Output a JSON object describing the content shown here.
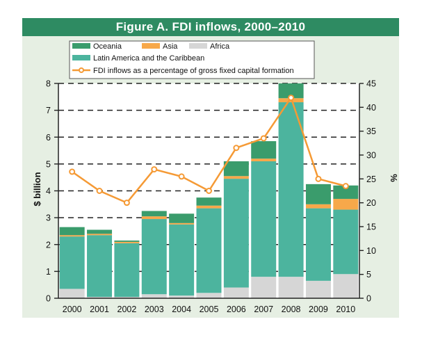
{
  "chart_data": {
    "type": "bar",
    "title": "Figure A. FDI inflows, 2000–2010",
    "categories": [
      "2000",
      "2001",
      "2002",
      "2003",
      "2004",
      "2005",
      "2006",
      "2007",
      "2008",
      "2009",
      "2010"
    ],
    "series": [
      {
        "name": "Africa",
        "color": "#d6d6d6",
        "values": [
          0.35,
          0.05,
          0.05,
          0.15,
          0.1,
          0.2,
          0.4,
          0.8,
          0.8,
          0.65,
          0.9
        ]
      },
      {
        "name": "Latin America and the Caribbean",
        "color": "#4cb49e",
        "values": [
          1.95,
          2.3,
          2.0,
          2.8,
          2.65,
          3.15,
          4.05,
          4.3,
          6.5,
          2.7,
          2.4
        ]
      },
      {
        "name": "Asia",
        "color": "#f7a84a",
        "values": [
          0.05,
          0.05,
          0.05,
          0.1,
          0.05,
          0.1,
          0.1,
          0.1,
          0.15,
          0.15,
          0.4
        ]
      },
      {
        "name": "Oceania",
        "color": "#3a9c6c",
        "values": [
          0.3,
          0.15,
          0.05,
          0.2,
          0.35,
          0.3,
          0.55,
          0.65,
          0.55,
          0.75,
          0.5
        ]
      }
    ],
    "line_series": {
      "name": "FDI inflows as a percentage of gross fixed capital formation",
      "color": "#f59a35",
      "values": [
        26.5,
        22.5,
        20,
        27,
        25.5,
        22.5,
        31.5,
        33.5,
        42,
        25,
        23.5
      ]
    },
    "ylabel": "$ billion",
    "ylim": [
      0,
      8
    ],
    "yticks": [
      "0",
      "1",
      "2",
      "3",
      "4",
      "5",
      "6",
      "7",
      "8"
    ],
    "y2label": "%",
    "y2lim": [
      0,
      45
    ],
    "y2ticks": [
      "0",
      "5",
      "10",
      "15",
      "20",
      "25",
      "30",
      "35",
      "40",
      "45"
    ],
    "grid": "dashed horizontal",
    "legend": {
      "placement": "top",
      "entries": [
        "Oceania",
        "Asia",
        "Africa",
        "Latin America and the Caribbean",
        "FDI inflows as a percentage of gross fixed capital formation"
      ]
    }
  }
}
